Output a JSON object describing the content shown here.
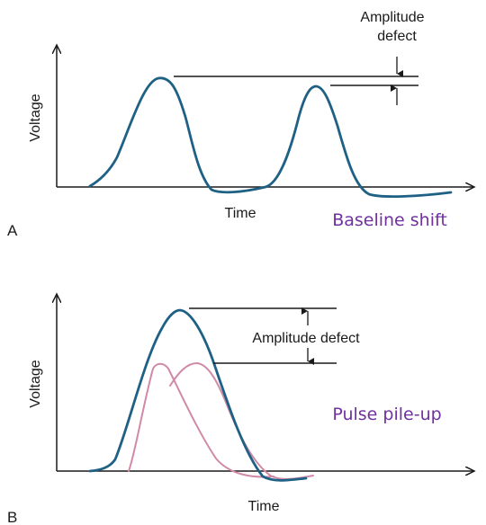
{
  "panel_a": {
    "letter": "A",
    "y_axis_label": "Voltage",
    "x_axis_label": "Time",
    "annotation_line1": "Amplitude",
    "annotation_line2": "defect",
    "caption": "Baseline shift"
  },
  "panel_b": {
    "letter": "B",
    "y_axis_label": "Voltage",
    "x_axis_label": "Time",
    "annotation": "Amplitude defect",
    "caption": "Pulse pile-up"
  },
  "colors": {
    "pulse": "#1e6185",
    "component_pulse": "#d08aa8",
    "caption": "#7030a0",
    "axis": "#1a1a1a"
  }
}
